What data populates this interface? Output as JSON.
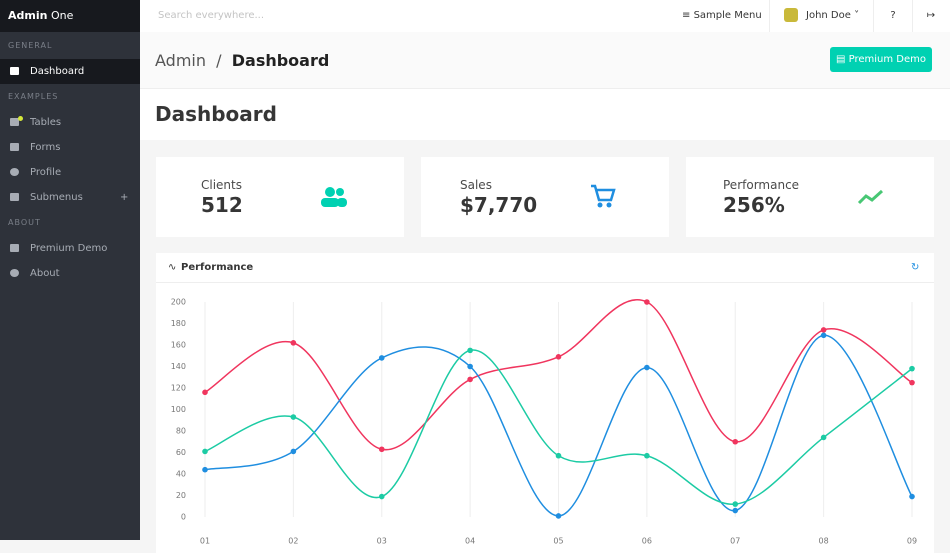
{
  "sidebar": {
    "brand_bold": "Admin",
    "brand_light": "One",
    "sections": [
      {
        "label": "GENERAL",
        "items": [
          "Dashboard"
        ]
      },
      {
        "label": "EXAMPLES",
        "items": [
          "Tables",
          "Forms",
          "Profile",
          "Submenus"
        ]
      },
      {
        "label": "ABOUT",
        "items": [
          "Premium Demo",
          "About"
        ]
      }
    ]
  },
  "navbar": {
    "search_placeholder": "Search everywhere...",
    "menu": "Sample Menu",
    "user": "John Doe"
  },
  "breadcrumb": [
    "Admin",
    "Dashboard"
  ],
  "premium_button": "Premium Demo",
  "hero_title": "Dashboard",
  "cards": [
    {
      "label": "Clients",
      "value": "512"
    },
    {
      "label": "Sales",
      "value": "$7,770"
    },
    {
      "label": "Performance",
      "value": "256%"
    }
  ],
  "chart_card_title": "Performance",
  "chart_data": {
    "type": "line",
    "categories": [
      "01",
      "02",
      "03",
      "04",
      "05",
      "06",
      "07",
      "08",
      "09"
    ],
    "series": [
      {
        "color": "#f0355e",
        "values": [
          116,
          162,
          63,
          128,
          149,
          200,
          70,
          174,
          125
        ]
      },
      {
        "color": "#1f8ee0",
        "values": [
          44,
          61,
          148,
          140,
          1,
          139,
          6,
          169,
          19
        ]
      },
      {
        "color": "#1ccba4",
        "values": [
          61,
          93,
          19,
          155,
          57,
          57,
          12,
          74,
          138
        ]
      }
    ],
    "ylim": [
      0,
      200
    ],
    "yticks": [
      0,
      20,
      40,
      60,
      80,
      100,
      120,
      140,
      160,
      180,
      200
    ],
    "grid": "x"
  }
}
